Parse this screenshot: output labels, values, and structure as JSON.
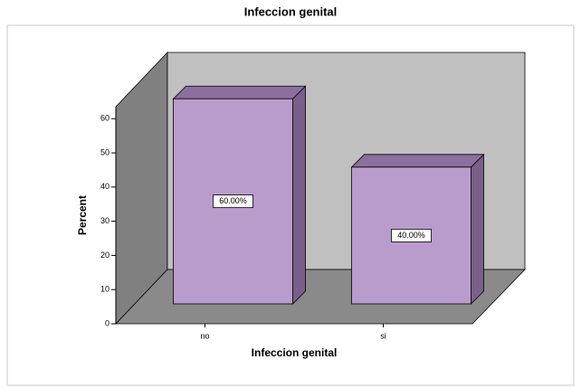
{
  "chart_data": {
    "type": "bar3d",
    "title": "Infeccion genital",
    "x_label": "Infeccion genital",
    "y_label": "Percent",
    "categories": [
      "no",
      "si"
    ],
    "values": [
      60,
      40
    ],
    "value_labels": [
      "60.00%",
      "40.00%"
    ],
    "color": "#b99ccb",
    "ylim": [
      0,
      63.5
    ],
    "yticks": [
      0,
      10,
      20,
      30,
      40,
      50,
      60
    ]
  }
}
